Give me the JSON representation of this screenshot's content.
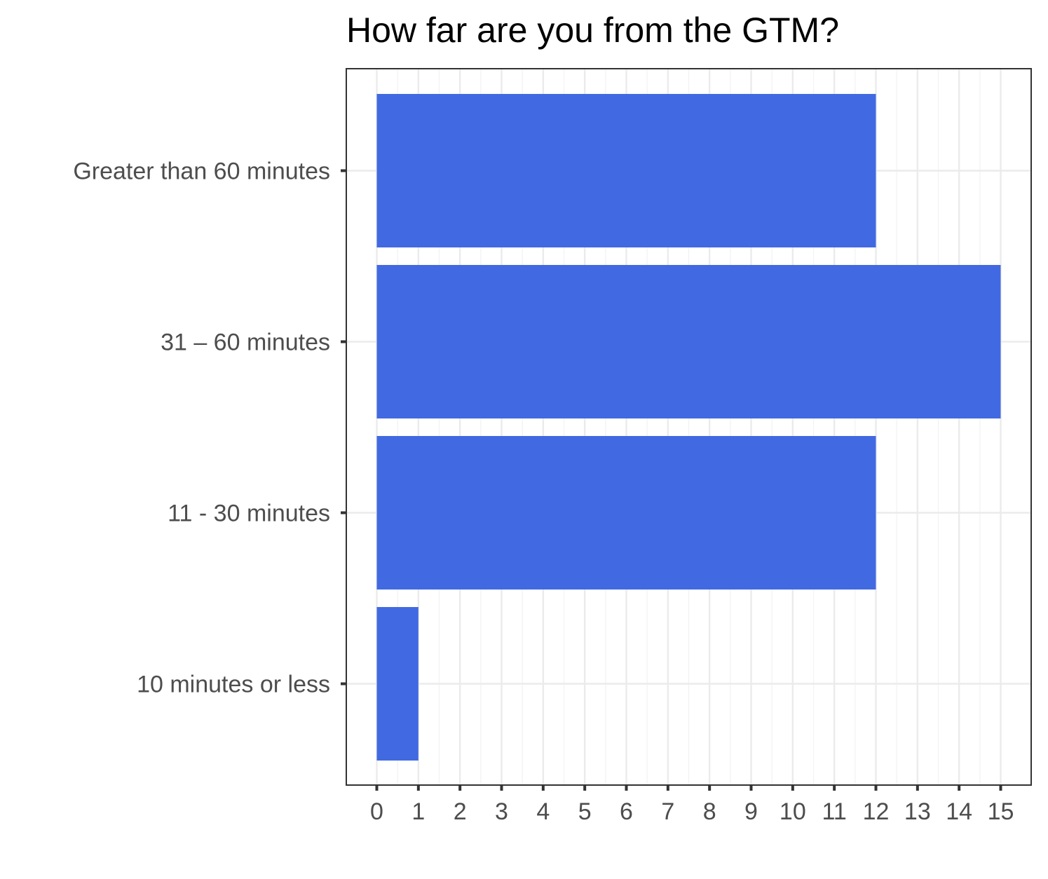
{
  "chart_data": {
    "type": "bar",
    "orientation": "horizontal",
    "title": "How far are you from the GTM?",
    "xlabel": "",
    "ylabel": "",
    "categories": [
      "Greater than 60 minutes",
      "31 – 60 minutes",
      "11 - 30 minutes",
      "10 minutes or less"
    ],
    "values": [
      12,
      15,
      12,
      1
    ],
    "xlim": [
      0,
      15
    ],
    "x_ticks": [
      "0",
      "1",
      "2",
      "3",
      "4",
      "5",
      "6",
      "7",
      "8",
      "9",
      "10",
      "11",
      "12",
      "13",
      "14",
      "15"
    ],
    "grid": true,
    "legend": "none",
    "bar_color": "#4169E1"
  }
}
